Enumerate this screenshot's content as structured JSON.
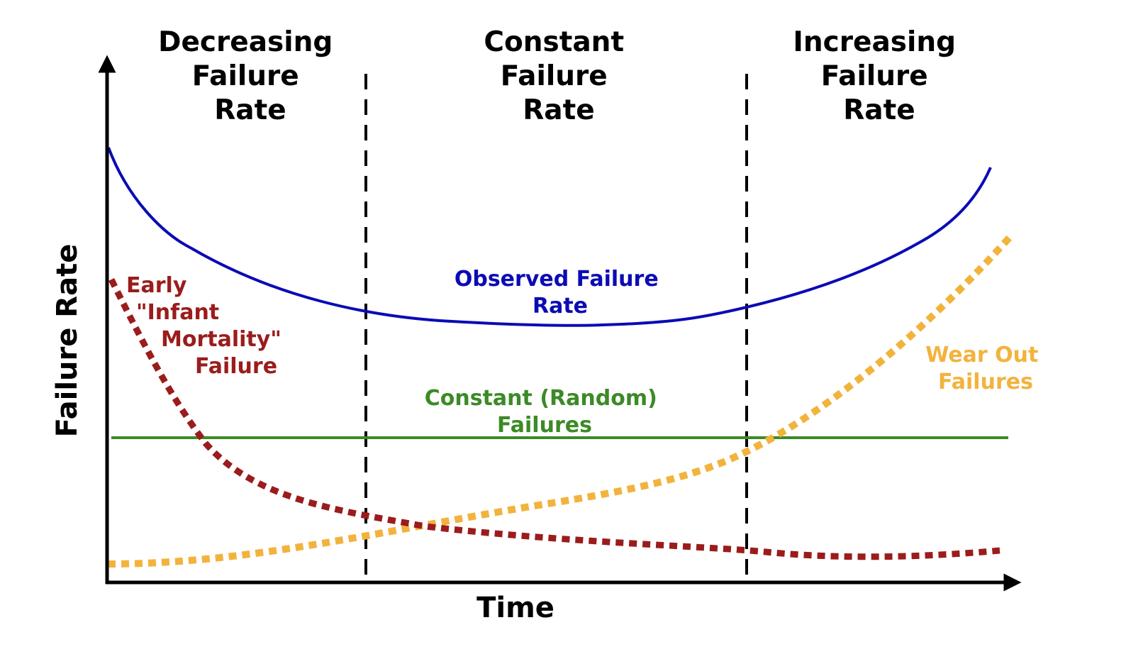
{
  "diagram": {
    "x_axis_label": "Time",
    "y_axis_label": "Failure Rate",
    "regions": [
      {
        "name": "decreasing",
        "lines": [
          "Decreasing",
          "Failure",
          "Rate"
        ]
      },
      {
        "name": "constant",
        "lines": [
          "Constant",
          "Failure",
          "Rate"
        ]
      },
      {
        "name": "increasing",
        "lines": [
          "Increasing",
          "Failure",
          "Rate"
        ]
      }
    ],
    "curves": {
      "observed": {
        "lines": [
          "Observed Failure",
          "Rate"
        ],
        "color": "#0b0bb5"
      },
      "infant": {
        "lines": [
          "Early",
          "\"Infant",
          "Mortality\"",
          "Failure"
        ],
        "color": "#9b1c1c"
      },
      "random": {
        "lines": [
          "Constant (Random)",
          "Failures"
        ],
        "color": "#3c8a26"
      },
      "wearout": {
        "lines": [
          "Wear Out",
          "Failures"
        ],
        "color": "#f2b33d"
      }
    },
    "colors": {
      "axis": "#000000",
      "divider": "#000000",
      "background": "#ffffff"
    }
  }
}
